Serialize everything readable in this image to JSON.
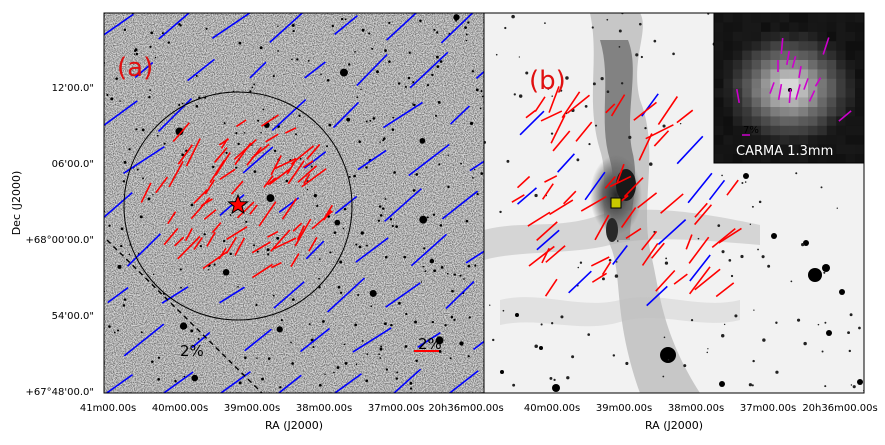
{
  "figure": {
    "panel_a_label": "(a)",
    "panel_b_label": "(b)",
    "y_axis_label": "Dec (J2000)",
    "x_axis_label_a": "RA (J2000)",
    "x_axis_label_b": "RA (J2000)",
    "y_ticks": [
      "12'00.0\"",
      "06'00.0\"",
      "+68°00'00.0\"",
      "54'00.0\"",
      "+67°48'00.0\""
    ],
    "x_ticks_a": [
      "41m00.00s",
      "40m00.00s",
      "39m00.00s",
      "38m00.00s",
      "37m00.00s",
      "20h36m00.00s"
    ],
    "x_ticks_b": [
      "40m00.00s",
      "39m00.00s",
      "38m00.00s",
      "37m00.00s",
      "20h36m00.00s"
    ],
    "scale_a_dashed": "2%",
    "scale_a_bar": "2%",
    "inset_scale": "7%",
    "inset_label": "CARMA 1.3mm",
    "colors": {
      "red_vectors": "#ff0000",
      "blue_vectors": "#0000ff",
      "magenta_vectors": "#cc00cc",
      "panel_label": "#e01010",
      "marker_star": "#ff0000",
      "marker_square": "#c8c800"
    }
  }
}
